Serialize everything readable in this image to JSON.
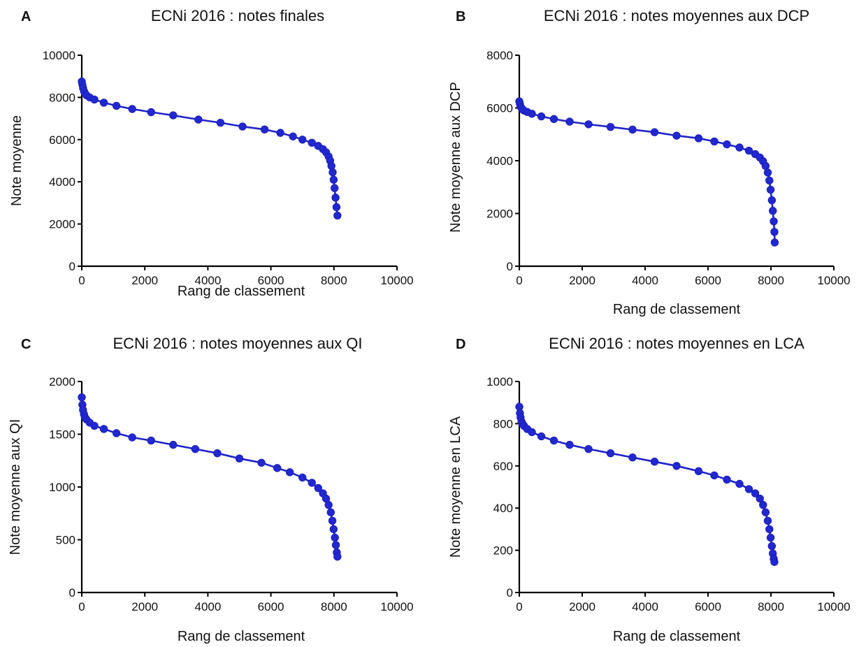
{
  "chart_data": [
    {
      "type": "scatter",
      "panel": "A",
      "title": "ECNi 2016 : notes finales",
      "xlabel": "Rang de classement",
      "ylabel": "Note moyenne",
      "xlim": [
        0,
        10000
      ],
      "ylim": [
        0,
        10000
      ],
      "xticks": [
        "0",
        "2000",
        "4000",
        "6000",
        "8000",
        "10000"
      ],
      "yticks": [
        "0",
        "2000",
        "4000",
        "6000",
        "8000",
        "10000"
      ],
      "line_connected": true,
      "color": "#2228d0",
      "x": [
        0,
        20,
        40,
        70,
        100,
        150,
        250,
        400,
        700,
        1100,
        1600,
        2200,
        2900,
        3700,
        4400,
        5100,
        5800,
        6300,
        6700,
        7000,
        7300,
        7500,
        7650,
        7750,
        7830,
        7880,
        7920,
        7960,
        7990,
        8020,
        8050,
        8080,
        8110
      ],
      "y": [
        8750,
        8600,
        8450,
        8300,
        8200,
        8100,
        8000,
        7900,
        7750,
        7600,
        7450,
        7300,
        7150,
        6950,
        6800,
        6620,
        6480,
        6320,
        6150,
        6000,
        5850,
        5700,
        5550,
        5400,
        5200,
        5000,
        4750,
        4450,
        4100,
        3700,
        3250,
        2800,
        2400
      ]
    },
    {
      "type": "scatter",
      "panel": "B",
      "title": "ECNi 2016 : notes moyennes aux DCP",
      "xlabel": "Rang de classement",
      "ylabel": "Note moyenne aux DCP",
      "xlim": [
        0,
        10000
      ],
      "ylim": [
        0,
        8000
      ],
      "xticks": [
        "0",
        "2000",
        "4000",
        "6000",
        "8000",
        "10000"
      ],
      "yticks": [
        "0",
        "2000",
        "4000",
        "6000",
        "8000"
      ],
      "line_connected": true,
      "color": "#2228d0",
      "x": [
        0,
        20,
        40,
        70,
        100,
        150,
        250,
        400,
        700,
        1100,
        1600,
        2200,
        2900,
        3600,
        4300,
        5000,
        5700,
        6200,
        6600,
        7000,
        7300,
        7500,
        7650,
        7750,
        7830,
        7900,
        7950,
        7990,
        8030,
        8060,
        8090,
        8110,
        8120
      ],
      "y": [
        6250,
        6150,
        6050,
        6000,
        5950,
        5900,
        5850,
        5780,
        5680,
        5580,
        5480,
        5380,
        5280,
        5180,
        5080,
        4950,
        4850,
        4730,
        4620,
        4500,
        4380,
        4250,
        4120,
        3980,
        3800,
        3550,
        3250,
        2900,
        2500,
        2100,
        1700,
        1300,
        900
      ]
    },
    {
      "type": "scatter",
      "panel": "C",
      "title": "ECNi 2016 : notes moyennes aux QI",
      "xlabel": "Rang de classement",
      "ylabel": "Note moyenne aux QI",
      "xlim": [
        0,
        10000
      ],
      "ylim": [
        0,
        2000
      ],
      "xticks": [
        "0",
        "2000",
        "4000",
        "6000",
        "8000",
        "10000"
      ],
      "yticks": [
        "0",
        "500",
        "1000",
        "1500",
        "2000"
      ],
      "line_connected": true,
      "color": "#2228d0",
      "x": [
        0,
        20,
        40,
        70,
        100,
        150,
        250,
        400,
        700,
        1100,
        1600,
        2200,
        2900,
        3600,
        4300,
        5000,
        5700,
        6200,
        6600,
        7000,
        7300,
        7500,
        7650,
        7750,
        7830,
        7900,
        7950,
        7990,
        8030,
        8060,
        8090,
        8110
      ],
      "y": [
        1850,
        1780,
        1730,
        1690,
        1660,
        1640,
        1610,
        1580,
        1550,
        1510,
        1470,
        1440,
        1400,
        1360,
        1320,
        1270,
        1230,
        1180,
        1140,
        1090,
        1040,
        990,
        940,
        890,
        830,
        760,
        680,
        600,
        520,
        450,
        380,
        340
      ]
    },
    {
      "type": "scatter",
      "panel": "D",
      "title": "ECNi 2016 : notes moyennes en LCA",
      "xlabel": "Rang de classement",
      "ylabel": "Note moyenne en LCA",
      "xlim": [
        0,
        10000
      ],
      "ylim": [
        0,
        1000
      ],
      "xticks": [
        "0",
        "2000",
        "4000",
        "6000",
        "8000",
        "10000"
      ],
      "yticks": [
        "0",
        "200",
        "400",
        "600",
        "800",
        "1000"
      ],
      "line_connected": true,
      "color": "#2228d0",
      "x": [
        0,
        20,
        40,
        70,
        100,
        150,
        250,
        400,
        700,
        1100,
        1600,
        2200,
        2900,
        3600,
        4300,
        5000,
        5700,
        6200,
        6600,
        7000,
        7300,
        7500,
        7650,
        7750,
        7830,
        7900,
        7950,
        7990,
        8030,
        8060,
        8090,
        8110
      ],
      "y": [
        880,
        850,
        830,
        810,
        800,
        790,
        775,
        760,
        740,
        720,
        700,
        680,
        660,
        640,
        620,
        600,
        575,
        555,
        535,
        515,
        490,
        470,
        445,
        415,
        380,
        340,
        300,
        260,
        220,
        185,
        160,
        145
      ]
    }
  ]
}
